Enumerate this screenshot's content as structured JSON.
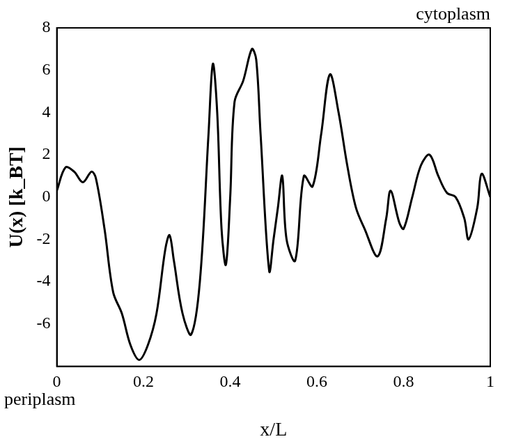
{
  "chart_data": {
    "type": "line",
    "x_label": "x/L",
    "y_label": "U(x) [k_BT]",
    "annotations": [
      "cytoplasm",
      "periplasm"
    ],
    "grid": false,
    "xlim": [
      0,
      1
    ],
    "xticks": [
      0,
      0.2,
      0.4,
      0.6,
      0.8,
      1
    ],
    "ylim": [
      -8,
      8
    ],
    "yticks": [
      -6,
      -4,
      -2,
      0,
      2,
      4,
      6,
      8
    ],
    "series": [
      {
        "name": "U(x)",
        "color": "#000000",
        "x": [
          0,
          0.02,
          0.04,
          0.06,
          0.08,
          0.09,
          0.11,
          0.13,
          0.15,
          0.17,
          0.19,
          0.21,
          0.23,
          0.25,
          0.26,
          0.27,
          0.29,
          0.31,
          0.33,
          0.35,
          0.36,
          0.37,
          0.38,
          0.39,
          0.4,
          0.41,
          0.43,
          0.45,
          0.46,
          0.47,
          0.49,
          0.5,
          0.51,
          0.52,
          0.53,
          0.55,
          0.57,
          0.59,
          0.61,
          0.63,
          0.65,
          0.67,
          0.69,
          0.71,
          0.74,
          0.76,
          0.77,
          0.79,
          0.8,
          0.82,
          0.84,
          0.86,
          0.88,
          0.9,
          0.92,
          0.94,
          0.95,
          0.97,
          0.98,
          1.0
        ],
        "values": [
          0.3,
          1.4,
          1.2,
          0.7,
          1.2,
          0.9,
          -1.5,
          -4.5,
          -5.5,
          -7,
          -7.7,
          -7,
          -5.5,
          -2.5,
          -1.8,
          -3,
          -5.5,
          -6.5,
          -4,
          3,
          6.3,
          4,
          -1.5,
          -3.2,
          0,
          4.5,
          5.5,
          7,
          6.5,
          3,
          -3.5,
          -2,
          -0.5,
          1,
          -2,
          -3,
          1,
          0.5,
          3,
          5.8,
          4,
          1.5,
          -0.5,
          -1.5,
          -2.8,
          -1,
          0.3,
          -1.2,
          -1.5,
          0,
          1.5,
          2,
          1,
          0.2,
          0,
          -1,
          -2,
          -0.5,
          1.1,
          0
        ]
      }
    ]
  }
}
